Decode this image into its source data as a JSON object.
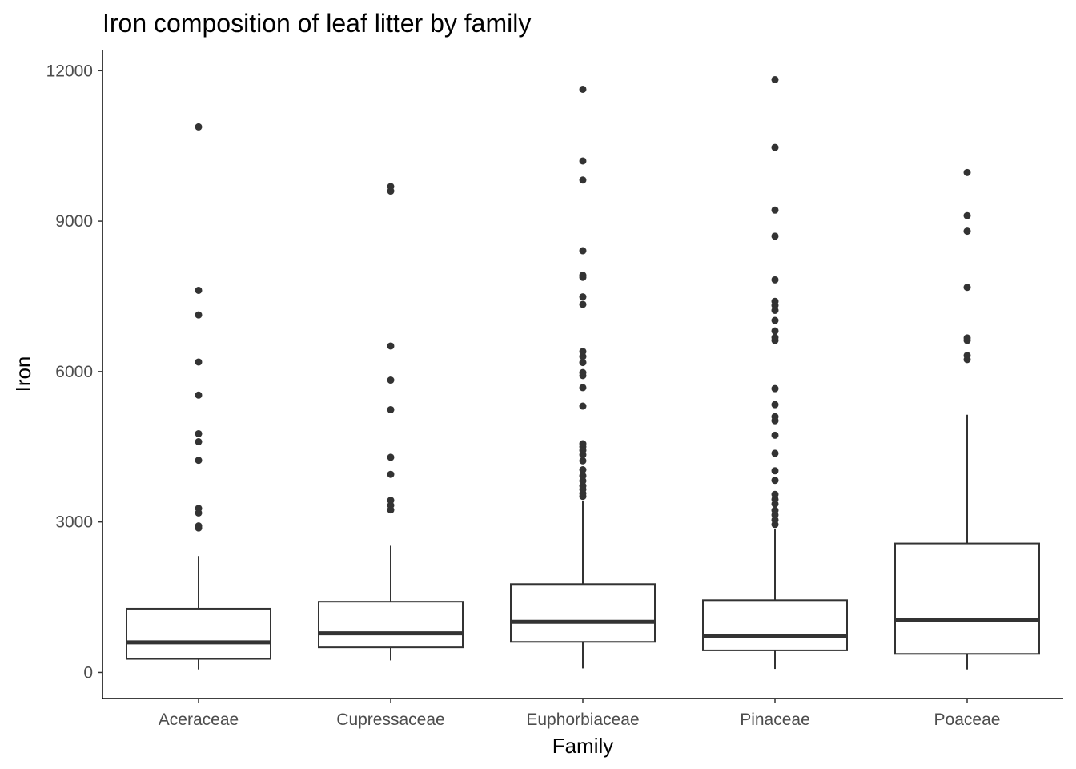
{
  "chart_data": {
    "type": "boxplot",
    "title": "Iron composition of leaf litter by family",
    "xlabel": "Family",
    "ylabel": "Iron",
    "ylim": [
      -520,
      12420
    ],
    "yticks": [
      0,
      3000,
      6000,
      9000,
      12000
    ],
    "grid": false,
    "legend": "none",
    "colors": {
      "stroke": "#333333",
      "tick_text": "#4d4d4d",
      "text": "#000000",
      "fill": "#ffffff"
    },
    "categories": [
      "Aceraceae",
      "Cupressaceae",
      "Euphorbiaceae",
      "Pinaceae",
      "Poaceae"
    ],
    "boxes": [
      {
        "category": "Aceraceae",
        "whisker_low": 60,
        "q1": 270,
        "median": 600,
        "q3": 1270,
        "whisker_high": 2320,
        "outliers": [
          2880,
          2920,
          3180,
          3270,
          4230,
          4600,
          4760,
          5530,
          6190,
          7130,
          7620,
          10880
        ]
      },
      {
        "category": "Cupressaceae",
        "whisker_low": 240,
        "q1": 500,
        "median": 780,
        "q3": 1410,
        "whisker_high": 2540,
        "outliers": [
          3240,
          3330,
          3430,
          3950,
          4290,
          5240,
          5830,
          6510,
          9600,
          9690
        ]
      },
      {
        "category": "Euphorbiaceae",
        "whisker_low": 80,
        "q1": 610,
        "median": 1010,
        "q3": 1760,
        "whisker_high": 3410,
        "outliers": [
          3510,
          3570,
          3650,
          3720,
          3820,
          3920,
          4040,
          4220,
          4340,
          4430,
          4500,
          4560,
          5310,
          5680,
          5920,
          5980,
          6180,
          6300,
          6400,
          7340,
          7490,
          7880,
          7920,
          8410,
          9820,
          10200,
          11630
        ]
      },
      {
        "category": "Pinaceae",
        "whisker_low": 70,
        "q1": 440,
        "median": 720,
        "q3": 1440,
        "whisker_high": 2860,
        "outliers": [
          2950,
          3040,
          3140,
          3230,
          3360,
          3450,
          3550,
          3830,
          4020,
          4370,
          4730,
          5020,
          5100,
          5340,
          5660,
          6620,
          6680,
          6810,
          7020,
          7220,
          7320,
          7400,
          7830,
          8700,
          9220,
          10470,
          11820
        ]
      },
      {
        "category": "Poaceae",
        "whisker_low": 60,
        "q1": 370,
        "median": 1050,
        "q3": 2570,
        "whisker_high": 5140,
        "outliers": [
          6240,
          6320,
          6620,
          6670,
          7680,
          8800,
          9110,
          9970
        ]
      }
    ]
  }
}
